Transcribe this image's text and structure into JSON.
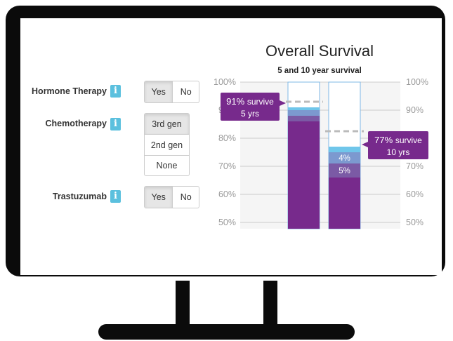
{
  "form": {
    "hormone_therapy": {
      "label": "Hormone Therapy",
      "info": "i",
      "options": [
        "Yes",
        "No"
      ],
      "selected": "Yes"
    },
    "chemotherapy": {
      "label": "Chemotherapy",
      "info": "i",
      "options": [
        "3rd gen",
        "2nd gen",
        "None"
      ],
      "selected": "3rd gen"
    },
    "trastuzumab": {
      "label": "Trastuzumab",
      "info": "i",
      "options": [
        "Yes",
        "No"
      ],
      "selected": "Yes"
    }
  },
  "chart_data": {
    "type": "bar",
    "title": "Overall Survival",
    "subtitle": "5 and 10 year survival",
    "ylim": [
      45,
      100
    ],
    "ticks": [
      "100%",
      "90%",
      "80%",
      "70%",
      "60%",
      "50%"
    ],
    "tick_values": [
      100,
      90,
      80,
      70,
      60,
      50
    ],
    "categories": [
      "5 yrs",
      "10 yrs"
    ],
    "stacks": [
      {
        "name": "5 yrs",
        "total": 91,
        "segments": [
          {
            "from": 0,
            "to": 86,
            "color": "#772a8c"
          },
          {
            "from": 86,
            "to": 88,
            "color": "#7b5aa5"
          },
          {
            "from": 88,
            "to": 90,
            "color": "#7c99cf"
          },
          {
            "from": 90,
            "to": 91,
            "color": "#6fc6ea"
          }
        ]
      },
      {
        "name": "10 yrs",
        "total": 77,
        "segments": [
          {
            "from": 0,
            "to": 66,
            "color": "#772a8c",
            "label": ""
          },
          {
            "from": 66,
            "to": 71,
            "color": "#7b5aa5",
            "label": "5%"
          },
          {
            "from": 71,
            "to": 75,
            "color": "#7c99cf",
            "label": "4%"
          },
          {
            "from": 75,
            "to": 77,
            "color": "#6fc6ea",
            "label": ""
          }
        ]
      }
    ],
    "dashed_levels": [
      93,
      82.5
    ],
    "tooltips": [
      {
        "value_text": "91%",
        "word": "survive",
        "sub": "5 yrs"
      },
      {
        "value_text": "77%",
        "word": "survive",
        "sub": "10 yrs"
      }
    ],
    "colors": {
      "purple": "#772a8c",
      "grid": "#cccccc",
      "panel": "#f5f5f5",
      "bar_border": "#7fb8e6"
    }
  }
}
